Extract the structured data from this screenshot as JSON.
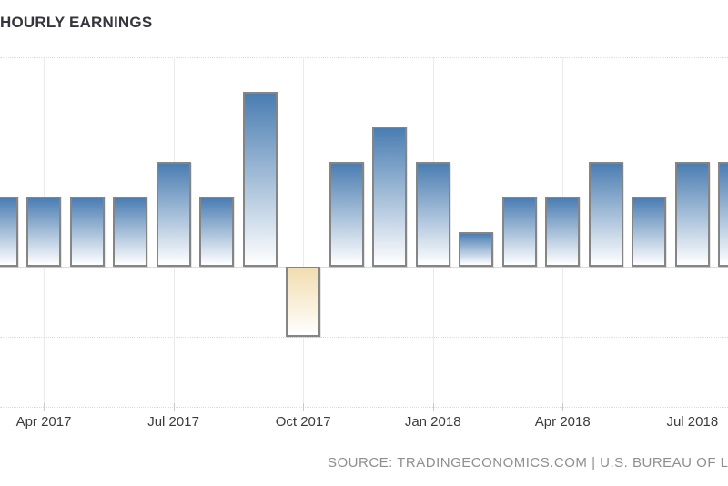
{
  "page": {
    "background": "#ffffff"
  },
  "header": {
    "title": "HOURLY EARNINGS"
  },
  "footer": {
    "source_text": "SOURCE: TRADINGECONOMICS.COM | U.S. BUREAU OF LAB"
  },
  "chart_data": {
    "type": "bar",
    "title": "HOURLY EARNINGS",
    "x": [
      "Mar 2017",
      "Apr 2017",
      "May 2017",
      "Jun 2017",
      "Jul 2017",
      "Aug 2017",
      "Sep 2017",
      "Oct 2017",
      "Nov 2017",
      "Dec 2017",
      "Jan 2018",
      "Feb 2018",
      "Mar 2018",
      "Apr 2018",
      "May 2018",
      "Jun 2018",
      "Jul 2018",
      "Aug 2018"
    ],
    "values": [
      0.2,
      0.2,
      0.2,
      0.2,
      0.3,
      0.2,
      0.5,
      -0.2,
      0.3,
      0.4,
      0.3,
      0.1,
      0.2,
      0.2,
      0.3,
      0.2,
      0.3,
      0.3
    ],
    "x_tick_labels": [
      "Apr 2017",
      "Jul 2017",
      "Oct 2017",
      "Jan 2018",
      "Apr 2018",
      "Jul 2018"
    ],
    "x_tick_indices": [
      1,
      4,
      7,
      10,
      13,
      16
    ],
    "ylim": [
      -0.4,
      0.6
    ],
    "gridline_step": 0.2,
    "grid": true,
    "legend": false,
    "xlabel": "",
    "ylabel": "",
    "source": "SOURCE: TRADINGECONOMICS.COM | U.S. BUREAU OF LAB",
    "colors": {
      "positive_bar": "#4a7db2",
      "negative_bar": "#f2ddb0",
      "bar_border": "#858585",
      "gridline": "#dcdcdc",
      "vertical_gridline": "#ebebeb",
      "tick": "#c9c9c9",
      "title_text": "#35353d",
      "axis_label_text": "#3c3c3c",
      "source_text": "#8f8f8f",
      "background": "#ffffff"
    }
  }
}
